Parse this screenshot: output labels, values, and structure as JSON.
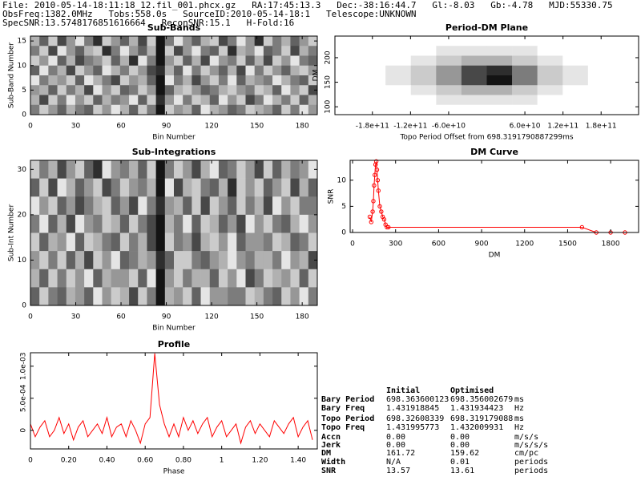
{
  "header": {
    "lines": [
      "File: 2010-05-14-18:11:18_12.fil_001.phcx.gz   RA:17:45:13.3   Dec:-38:16:44.7   Gl:-8.03   Gb:-4.78   MJD:55330.75",
      "ObsFreq:1382.0MHz   Tobs:558.0s   SourceID:2010-05-14-18:1   Telescope:UNKNOWN",
      "SpecSNR:13.5748176851616664   ReconSNR:15.1   H-Fold:16"
    ]
  },
  "chart_data": [
    {
      "type": "heatmap",
      "title": "Sub-Bands",
      "xlabel": "Bin Number",
      "ylabel": "Sub-Band Number",
      "xlim": [
        0,
        190
      ],
      "xticks": [
        0,
        30,
        60,
        90,
        120,
        150,
        180
      ],
      "ylim": [
        0,
        16
      ],
      "yticks": [
        0,
        5,
        10,
        15
      ],
      "values": [
        [
          3,
          6,
          2,
          7,
          4,
          1,
          5,
          8,
          2,
          4,
          6,
          3,
          7,
          2,
          9,
          5,
          1,
          4,
          6,
          3,
          2,
          7,
          5,
          1,
          4,
          8,
          2,
          5,
          3,
          6,
          4,
          2
        ],
        [
          5,
          2,
          7,
          1,
          4,
          6,
          3,
          2,
          8,
          5,
          1,
          4,
          6,
          3,
          9,
          2,
          7,
          4,
          1,
          5,
          6,
          2,
          8,
          3,
          4,
          1,
          6,
          5,
          2,
          7,
          3,
          5
        ],
        [
          2,
          4,
          1,
          6,
          3,
          7,
          5,
          4,
          2,
          6,
          3,
          8,
          1,
          5,
          9,
          4,
          2,
          6,
          3,
          7,
          1,
          4,
          5,
          2,
          6,
          3,
          7,
          2,
          4,
          1,
          5,
          6
        ],
        [
          6,
          1,
          5,
          3,
          7,
          2,
          4,
          6,
          1,
          3,
          5,
          2,
          4,
          7,
          8,
          3,
          6,
          1,
          5,
          2,
          4,
          6,
          3,
          7,
          1,
          5,
          2,
          4,
          6,
          3,
          2,
          4
        ],
        [
          1,
          5,
          3,
          4,
          2,
          6,
          1,
          3,
          5,
          7,
          2,
          4,
          3,
          6,
          9,
          1,
          5,
          3,
          7,
          4,
          2,
          5,
          1,
          6,
          3,
          4,
          5,
          1,
          3,
          5,
          6,
          2
        ],
        [
          4,
          3,
          6,
          2,
          5,
          3,
          7,
          1,
          4,
          2,
          6,
          5,
          2,
          4,
          9,
          6,
          3,
          2,
          4,
          6,
          5,
          3,
          2,
          4,
          5,
          2,
          3,
          6,
          1,
          4,
          2,
          7
        ],
        [
          3,
          7,
          2,
          5,
          1,
          4,
          2,
          6,
          3,
          5,
          4,
          1,
          6,
          2,
          8,
          4,
          1,
          5,
          2,
          3,
          6,
          1,
          4,
          2,
          7,
          5,
          1,
          3,
          5,
          2,
          6,
          3
        ],
        [
          5,
          2,
          4,
          6,
          3,
          5,
          6,
          2,
          4,
          1,
          3,
          6,
          2,
          5,
          9,
          2,
          4,
          3,
          6,
          1,
          3,
          4,
          6,
          5,
          2,
          3,
          4,
          6,
          2,
          5,
          1,
          4
        ]
      ]
    },
    {
      "type": "heatmap",
      "title": "Period-DM Plane",
      "xlabel": "Topo Period Offset from 698.3191790887299ms",
      "ylabel": "DM",
      "xlim": [
        -239000000000,
        239000000000
      ],
      "xticks": [
        {
          "value": -180000000000,
          "label": "-1.8e+11"
        },
        {
          "value": -120000000000,
          "label": "-1.2e+11"
        },
        {
          "value": -60000000000,
          "label": "-6.0e+10"
        },
        {
          "value": 60000000000,
          "label": "6.0e+10"
        },
        {
          "value": 120000000000,
          "label": "1.2e+11"
        },
        {
          "value": 180000000000,
          "label": "1.8e+11"
        }
      ],
      "ylim": [
        84,
        244
      ],
      "yticks": [
        100,
        150,
        200
      ],
      "ytick_labels_rotated": true,
      "values": [
        [
          0,
          0,
          0,
          0,
          0,
          0,
          0,
          0,
          0,
          0,
          0,
          0
        ],
        [
          0,
          0,
          0,
          0,
          1,
          1,
          1,
          1,
          0,
          0,
          0,
          0
        ],
        [
          0,
          0,
          0,
          1,
          2,
          3,
          3,
          2,
          1,
          0,
          0,
          0
        ],
        [
          0,
          0,
          1,
          2,
          4,
          7,
          8,
          5,
          2,
          1,
          0,
          0
        ],
        [
          0,
          0,
          1,
          2,
          4,
          7,
          9,
          5,
          2,
          1,
          0,
          0
        ],
        [
          0,
          0,
          0,
          1,
          2,
          3,
          3,
          2,
          1,
          0,
          0,
          0
        ],
        [
          0,
          0,
          0,
          0,
          1,
          1,
          1,
          1,
          0,
          0,
          0,
          0
        ],
        [
          0,
          0,
          0,
          0,
          0,
          0,
          0,
          0,
          0,
          0,
          0,
          0
        ]
      ]
    },
    {
      "type": "heatmap",
      "title": "Sub-Integrations",
      "xlabel": "Bin Number",
      "ylabel": "Sub-Int Number",
      "xlim": [
        0,
        190
      ],
      "xticks": [
        0,
        30,
        60,
        90,
        120,
        150,
        180
      ],
      "ylim": [
        0,
        32
      ],
      "yticks": [
        0,
        10,
        20,
        30
      ],
      "values": [
        [
          2,
          5,
          3,
          7,
          4,
          2,
          6,
          8,
          1,
          4,
          5,
          3,
          6,
          2,
          9,
          5,
          2,
          4,
          7,
          3,
          1,
          6,
          5,
          2,
          4,
          7,
          2,
          6,
          3,
          5,
          4,
          1
        ],
        [
          6,
          2,
          7,
          1,
          3,
          6,
          4,
          2,
          7,
          5,
          2,
          4,
          5,
          3,
          9,
          1,
          7,
          3,
          2,
          5,
          6,
          3,
          8,
          2,
          4,
          2,
          6,
          4,
          2,
          7,
          3,
          6
        ],
        [
          1,
          4,
          2,
          6,
          4,
          7,
          5,
          3,
          2,
          6,
          4,
          7,
          1,
          5,
          8,
          4,
          3,
          6,
          2,
          7,
          2,
          4,
          6,
          2,
          5,
          3,
          7,
          1,
          4,
          2,
          5,
          5
        ],
        [
          5,
          1,
          6,
          3,
          7,
          1,
          4,
          5,
          2,
          3,
          6,
          2,
          5,
          7,
          9,
          3,
          5,
          1,
          6,
          2,
          3,
          6,
          4,
          7,
          1,
          4,
          2,
          5,
          6,
          3,
          1,
          4
        ],
        [
          2,
          6,
          3,
          4,
          1,
          6,
          2,
          3,
          5,
          6,
          2,
          5,
          3,
          7,
          9,
          2,
          5,
          4,
          7,
          3,
          2,
          4,
          1,
          6,
          4,
          4,
          5,
          2,
          3,
          6,
          5,
          2
        ],
        [
          4,
          2,
          5,
          2,
          6,
          3,
          7,
          2,
          4,
          1,
          6,
          5,
          3,
          4,
          8,
          6,
          2,
          2,
          5,
          6,
          4,
          3,
          1,
          4,
          5,
          3,
          3,
          5,
          1,
          4,
          3,
          7
        ],
        [
          3,
          6,
          2,
          5,
          2,
          4,
          1,
          6,
          3,
          4,
          4,
          2,
          6,
          1,
          9,
          4,
          2,
          5,
          3,
          3,
          6,
          2,
          4,
          1,
          7,
          5,
          2,
          3,
          4,
          2,
          6,
          2
        ],
        [
          6,
          2,
          5,
          6,
          3,
          4,
          6,
          1,
          4,
          2,
          3,
          7,
          2,
          5,
          9,
          3,
          4,
          2,
          6,
          1,
          4,
          4,
          5,
          5,
          2,
          3,
          5,
          6,
          2,
          4,
          1,
          5
        ]
      ]
    },
    {
      "type": "line",
      "title": "DM Curve",
      "xlabel": "DM",
      "ylabel": "SNR",
      "xlim": [
        -17,
        1995
      ],
      "xticks": [
        0,
        300,
        600,
        900,
        1200,
        1500,
        1800
      ],
      "ylim": [
        0,
        13.8
      ],
      "yticks": [
        0,
        5,
        10
      ],
      "markers": true,
      "series": [
        {
          "color": "#ff0000",
          "x": [
            120,
            130,
            140,
            145,
            150,
            155,
            160,
            165,
            170,
            175,
            180,
            190,
            200,
            210,
            220,
            230,
            240,
            250,
            1600,
            1700,
            1800,
            1900
          ],
          "values": [
            3,
            2,
            4,
            6,
            9,
            11,
            13,
            13.6,
            12,
            10,
            8,
            5,
            4,
            3,
            2.5,
            1.5,
            1,
            1,
            1,
            0,
            0,
            0
          ]
        }
      ]
    },
    {
      "type": "line",
      "title": "Profile",
      "xlabel": "Phase",
      "xlim": [
        0,
        1.5
      ],
      "xticks": [
        0,
        {
          "value": 0.2,
          "label": "0.20"
        },
        {
          "value": 0.4,
          "label": "0.40"
        },
        {
          "value": 0.6,
          "label": "0.60"
        },
        {
          "value": 0.8,
          "label": "0.80"
        },
        1,
        {
          "value": 1.2,
          "label": "1.20"
        },
        {
          "value": 1.4,
          "label": "1.40"
        }
      ],
      "ylim": [
        -0.00029,
        0.00121
      ],
      "yticks": [
        0,
        {
          "value": 0.0005,
          "label": "5.0e-04"
        },
        {
          "value": 0.001,
          "label": "1.0e-03"
        }
      ],
      "ytick_labels_rotated": true,
      "series": [
        {
          "color": "#ff0000",
          "x": [
            0,
            0.025,
            0.05,
            0.075,
            0.1,
            0.125,
            0.15,
            0.175,
            0.2,
            0.225,
            0.25,
            0.275,
            0.3,
            0.325,
            0.35,
            0.375,
            0.4,
            0.425,
            0.45,
            0.475,
            0.5,
            0.525,
            0.55,
            0.575,
            0.6,
            0.625,
            0.65,
            0.675,
            0.7,
            0.725,
            0.75,
            0.775,
            0.8,
            0.825,
            0.85,
            0.875,
            0.9,
            0.925,
            0.95,
            0.975,
            1,
            1.025,
            1.05,
            1.075,
            1.1,
            1.125,
            1.15,
            1.175,
            1.2,
            1.225,
            1.25,
            1.275,
            1.3,
            1.325,
            1.35,
            1.375,
            1.4,
            1.425,
            1.45,
            1.475
          ],
          "values": [
            0.0001,
            -0.0001,
            5e-05,
            0.00015,
            -0.0001,
            0,
            0.0002,
            -5e-05,
            0.0001,
            -0.00015,
            5e-05,
            0.00015,
            -0.0001,
            0,
            0.0001,
            -5e-05,
            0.0002,
            -0.0001,
            5e-05,
            0.0001,
            -0.0001,
            0.00015,
            0,
            -0.0002,
            0.0001,
            0.0002,
            0.0012,
            0.0004,
            0.0001,
            -0.0001,
            0.0001,
            -0.0001,
            0.0002,
            0,
            0.00015,
            -5e-05,
            0.0001,
            0.0002,
            -0.0001,
            5e-05,
            0.00015,
            -0.0001,
            0,
            0.0001,
            -0.0002,
            5e-05,
            0.00015,
            -5e-05,
            0.0001,
            0,
            -0.0001,
            0.00015,
            5e-05,
            -5e-05,
            0.0001,
            0.0002,
            -0.0001,
            5e-05,
            0.00015,
            -0.00015
          ]
        }
      ]
    }
  ],
  "table": {
    "columns": [
      "Initial",
      "Optimised"
    ],
    "rows": [
      [
        "Bary Period",
        "698.363600123",
        "698.356002679",
        "ms"
      ],
      [
        "Bary Freq",
        "1.431918845",
        "1.431934423",
        "Hz"
      ],
      [
        "Topo Period",
        "698.32608339",
        "698.319179088",
        "ms"
      ],
      [
        "Topo Freq",
        "1.431995773",
        "1.432009931",
        "Hz"
      ],
      [
        "Accn",
        "0.00",
        "0.00",
        "m/s/s"
      ],
      [
        "Jerk",
        "0.00",
        "0.00",
        "m/s/s/s"
      ],
      [
        "DM",
        "161.72",
        "159.62",
        "cm/pc"
      ],
      [
        "Width",
        "N/A",
        "0.01",
        "periods"
      ],
      [
        "SNR",
        "13.57",
        "13.61",
        "periods"
      ]
    ]
  }
}
